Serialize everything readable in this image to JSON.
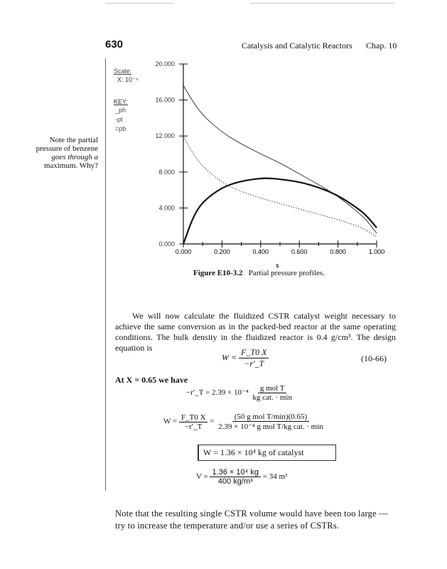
{
  "header": {
    "page_number": "630",
    "running_title": "Catalysis and Catalytic Reactors",
    "chapter": "Chap. 10"
  },
  "margin_note": [
    "Note the partial",
    "pressure of benzene",
    "goes through a",
    "maximum. Why?"
  ],
  "chart_data": {
    "type": "line",
    "title": "",
    "scale_label": "Scale:",
    "scale_value": "X: 10⁻⁴",
    "key_label": "KEY:",
    "legend": [
      "_ph",
      "-pt",
      "=pb"
    ],
    "xlabel": "x",
    "ylabel": "",
    "xlim": [
      0,
      1
    ],
    "ylim": [
      0,
      20
    ],
    "x_ticks": [
      "0.000",
      "0.200",
      "0.400",
      "0.600",
      "0.800",
      "1.000"
    ],
    "y_ticks": [
      "0.000",
      "4.000",
      "8.000",
      "12.000",
      "16.000",
      "20.000"
    ],
    "grid": false,
    "x": [
      0,
      0.05,
      0.1,
      0.2,
      0.3,
      0.4,
      0.45,
      0.5,
      0.6,
      0.7,
      0.8,
      0.9,
      0.95,
      1.0
    ],
    "series": [
      {
        "name": "pt",
        "style": "thin",
        "values": [
          17.6,
          15.8,
          14.3,
          12.4,
          11.1,
          10.0,
          9.5,
          9.0,
          7.8,
          6.6,
          5.3,
          3.6,
          2.6,
          1.2
        ]
      },
      {
        "name": "ph",
        "style": "dotted",
        "values": [
          12.0,
          10.0,
          8.6,
          6.8,
          5.8,
          5.1,
          4.8,
          4.5,
          3.9,
          3.3,
          2.7,
          2.0,
          1.5,
          0.8
        ]
      },
      {
        "name": "pb",
        "style": "thick",
        "values": [
          0.0,
          3.0,
          4.7,
          6.3,
          7.0,
          7.3,
          7.3,
          7.2,
          6.9,
          6.3,
          5.4,
          4.0,
          3.1,
          1.8
        ]
      }
    ]
  },
  "figure_caption": {
    "label": "Figure E10-3.2",
    "text": "Partial pressure profiles."
  },
  "body": {
    "para1": "We will now calculate the fluidized CSTR catalyst weight necessary to achieve the same conversion as in the packed-bed reactor at the same operating conditions. The bulk density in the fluidized reactor is 0.4 g/cm³. The design equation is",
    "eq1_lhs": "W =",
    "eq1_num": "F_T0 X",
    "eq1_den": "−r′_T",
    "eq1_number": "(10-66)",
    "at_x": "At X = 0.65 we have",
    "eq2_lhs": "−r′_T = 2.39 × 10⁻⁴",
    "eq2_num": "g mol T",
    "eq2_den": "kg cat. · min",
    "eq3_lhs": "W =",
    "eq3_num1": "F_T0 X",
    "eq3_den1": "−r′_T",
    "eq3_eq": "=",
    "eq3_num2": "(50 g mol T/min)(0.65)",
    "eq3_den2": "2.39 × 10⁻⁴ g mol T/kg cat. · min",
    "eq4": "W = 1.36 × 10⁴ kg of catalyst",
    "eq5_lhs": "V =",
    "eq5_num": "1.36 × 10⁴ kg",
    "eq5_den": "400 kg/m³",
    "eq5_rhs": "= 34 m³",
    "para2": "Note that the resulting single CSTR volume would have been too large — try to increase the temperature and/or use a series of CSTRs."
  }
}
